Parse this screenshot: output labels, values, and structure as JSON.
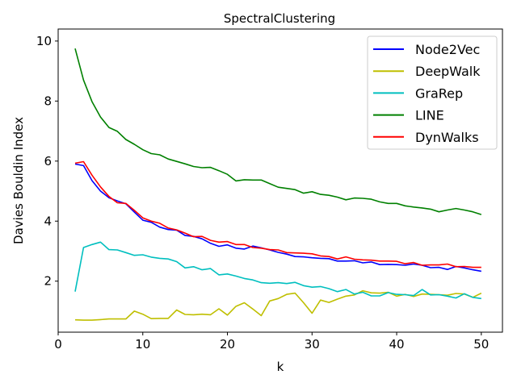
{
  "chart_data": {
    "type": "line",
    "title": "SpectralClustering",
    "xlabel": "k",
    "ylabel": "Davies Bouldin Index",
    "xlim": [
      0,
      52.5
    ],
    "ylim": [
      0.3,
      10.4
    ],
    "xticks": [
      0,
      10,
      20,
      30,
      40,
      50
    ],
    "yticks": [
      2,
      4,
      6,
      8,
      10
    ],
    "grid": false,
    "legend_position": "top-right",
    "x": [
      2,
      3,
      4,
      5,
      6,
      7,
      8,
      9,
      10,
      11,
      12,
      13,
      14,
      15,
      16,
      17,
      18,
      19,
      20,
      21,
      22,
      23,
      24,
      25,
      26,
      27,
      28,
      29,
      30,
      31,
      32,
      33,
      34,
      35,
      36,
      37,
      38,
      39,
      40,
      41,
      42,
      43,
      44,
      45,
      46,
      47,
      48,
      49,
      50
    ],
    "series": [
      {
        "name": "Node2Vec",
        "color": "#0000ff",
        "values": [
          5.9,
          5.85,
          5.35,
          5.0,
          4.78,
          4.67,
          4.58,
          4.3,
          4.03,
          3.96,
          3.8,
          3.72,
          3.7,
          3.52,
          3.49,
          3.41,
          3.26,
          3.16,
          3.21,
          3.1,
          3.07,
          3.17,
          3.11,
          3.04,
          2.96,
          2.9,
          2.82,
          2.81,
          2.78,
          2.76,
          2.75,
          2.67,
          2.67,
          2.68,
          2.61,
          2.64,
          2.55,
          2.56,
          2.55,
          2.53,
          2.57,
          2.53,
          2.45,
          2.46,
          2.39,
          2.49,
          2.44,
          2.38,
          2.33
        ]
      },
      {
        "name": "DeepWalk",
        "color": "#bfbf00",
        "values": [
          0.71,
          0.7,
          0.7,
          0.72,
          0.74,
          0.74,
          0.74,
          1.0,
          0.9,
          0.75,
          0.76,
          0.76,
          1.04,
          0.89,
          0.88,
          0.9,
          0.88,
          1.08,
          0.87,
          1.16,
          1.28,
          1.07,
          0.85,
          1.34,
          1.42,
          1.56,
          1.6,
          1.28,
          0.93,
          1.37,
          1.29,
          1.4,
          1.5,
          1.54,
          1.68,
          1.61,
          1.6,
          1.63,
          1.5,
          1.56,
          1.49,
          1.57,
          1.56,
          1.55,
          1.53,
          1.59,
          1.57,
          1.46,
          1.6
        ]
      },
      {
        "name": "GraRep",
        "color": "#00bfbf",
        "values": [
          1.65,
          3.12,
          3.22,
          3.3,
          3.05,
          3.04,
          2.95,
          2.86,
          2.88,
          2.8,
          2.76,
          2.74,
          2.65,
          2.44,
          2.48,
          2.38,
          2.42,
          2.21,
          2.24,
          2.17,
          2.09,
          2.04,
          1.95,
          1.93,
          1.95,
          1.92,
          1.96,
          1.85,
          1.8,
          1.82,
          1.75,
          1.65,
          1.72,
          1.57,
          1.63,
          1.51,
          1.51,
          1.62,
          1.56,
          1.55,
          1.52,
          1.72,
          1.54,
          1.55,
          1.5,
          1.44,
          1.58,
          1.46,
          1.42
        ]
      },
      {
        "name": "LINE",
        "color": "#008000",
        "values": [
          9.75,
          8.7,
          7.98,
          7.47,
          7.12,
          6.99,
          6.72,
          6.56,
          6.38,
          6.25,
          6.21,
          6.07,
          5.99,
          5.91,
          5.82,
          5.78,
          5.79,
          5.68,
          5.56,
          5.34,
          5.38,
          5.37,
          5.37,
          5.25,
          5.13,
          5.09,
          5.05,
          4.93,
          4.98,
          4.89,
          4.86,
          4.8,
          4.71,
          4.77,
          4.76,
          4.73,
          4.64,
          4.59,
          4.59,
          4.51,
          4.47,
          4.44,
          4.4,
          4.31,
          4.37,
          4.42,
          4.37,
          4.31,
          4.22
        ]
      },
      {
        "name": "DynWalks",
        "color": "#ff0000",
        "values": [
          5.93,
          5.98,
          5.53,
          5.14,
          4.82,
          4.61,
          4.59,
          4.36,
          4.11,
          4.0,
          3.93,
          3.77,
          3.71,
          3.6,
          3.48,
          3.49,
          3.36,
          3.3,
          3.32,
          3.22,
          3.22,
          3.12,
          3.1,
          3.05,
          3.04,
          2.95,
          2.94,
          2.93,
          2.91,
          2.84,
          2.82,
          2.74,
          2.81,
          2.73,
          2.71,
          2.7,
          2.67,
          2.67,
          2.66,
          2.58,
          2.62,
          2.53,
          2.54,
          2.54,
          2.57,
          2.48,
          2.49,
          2.46,
          2.46
        ]
      }
    ]
  }
}
